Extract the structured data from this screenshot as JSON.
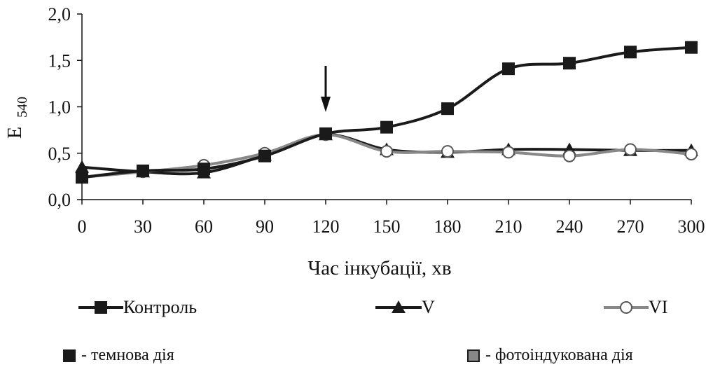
{
  "chart_data": {
    "type": "line",
    "title": "",
    "xlabel": "Час інкубації, хв",
    "ylabel": "E",
    "ylabel_sub": "540",
    "xlim": [
      0,
      300
    ],
    "ylim": [
      0,
      2.0
    ],
    "x": [
      0,
      30,
      60,
      90,
      120,
      150,
      180,
      210,
      240,
      270,
      300
    ],
    "x_tick_labels": [
      "0",
      "30",
      "60",
      "90",
      "120",
      "150",
      "180",
      "210",
      "240",
      "270",
      "300"
    ],
    "y_ticks": [
      0,
      0.5,
      1.0,
      1.5,
      2.0
    ],
    "y_tick_labels": [
      "0,0",
      "0,5",
      "1,0",
      "1,5",
      "2,0"
    ],
    "grid": false,
    "legend_position": "bottom",
    "annotation": {
      "type": "arrow",
      "x": 120
    },
    "series": [
      {
        "name": "Контроль",
        "marker": "square",
        "color": "#1a1a1a",
        "values": [
          0.24,
          0.31,
          0.33,
          0.47,
          0.71,
          0.78,
          0.98,
          1.41,
          1.47,
          1.59,
          1.64
        ]
      },
      {
        "name": "V",
        "marker": "triangle",
        "color": "#1a1a1a",
        "values": [
          0.35,
          0.3,
          0.29,
          0.48,
          0.7,
          0.54,
          0.51,
          0.54,
          0.54,
          0.53,
          0.53
        ]
      },
      {
        "name": "VI",
        "marker": "circle",
        "color": "#888888",
        "values": [
          0.24,
          0.3,
          0.37,
          0.5,
          0.7,
          0.52,
          0.52,
          0.51,
          0.47,
          0.54,
          0.49
        ]
      }
    ]
  },
  "notes": [
    {
      "label": "- темнова дія",
      "color": "#1a1a1a"
    },
    {
      "label": "- фотоіндукована дія",
      "color": "#888888"
    }
  ]
}
